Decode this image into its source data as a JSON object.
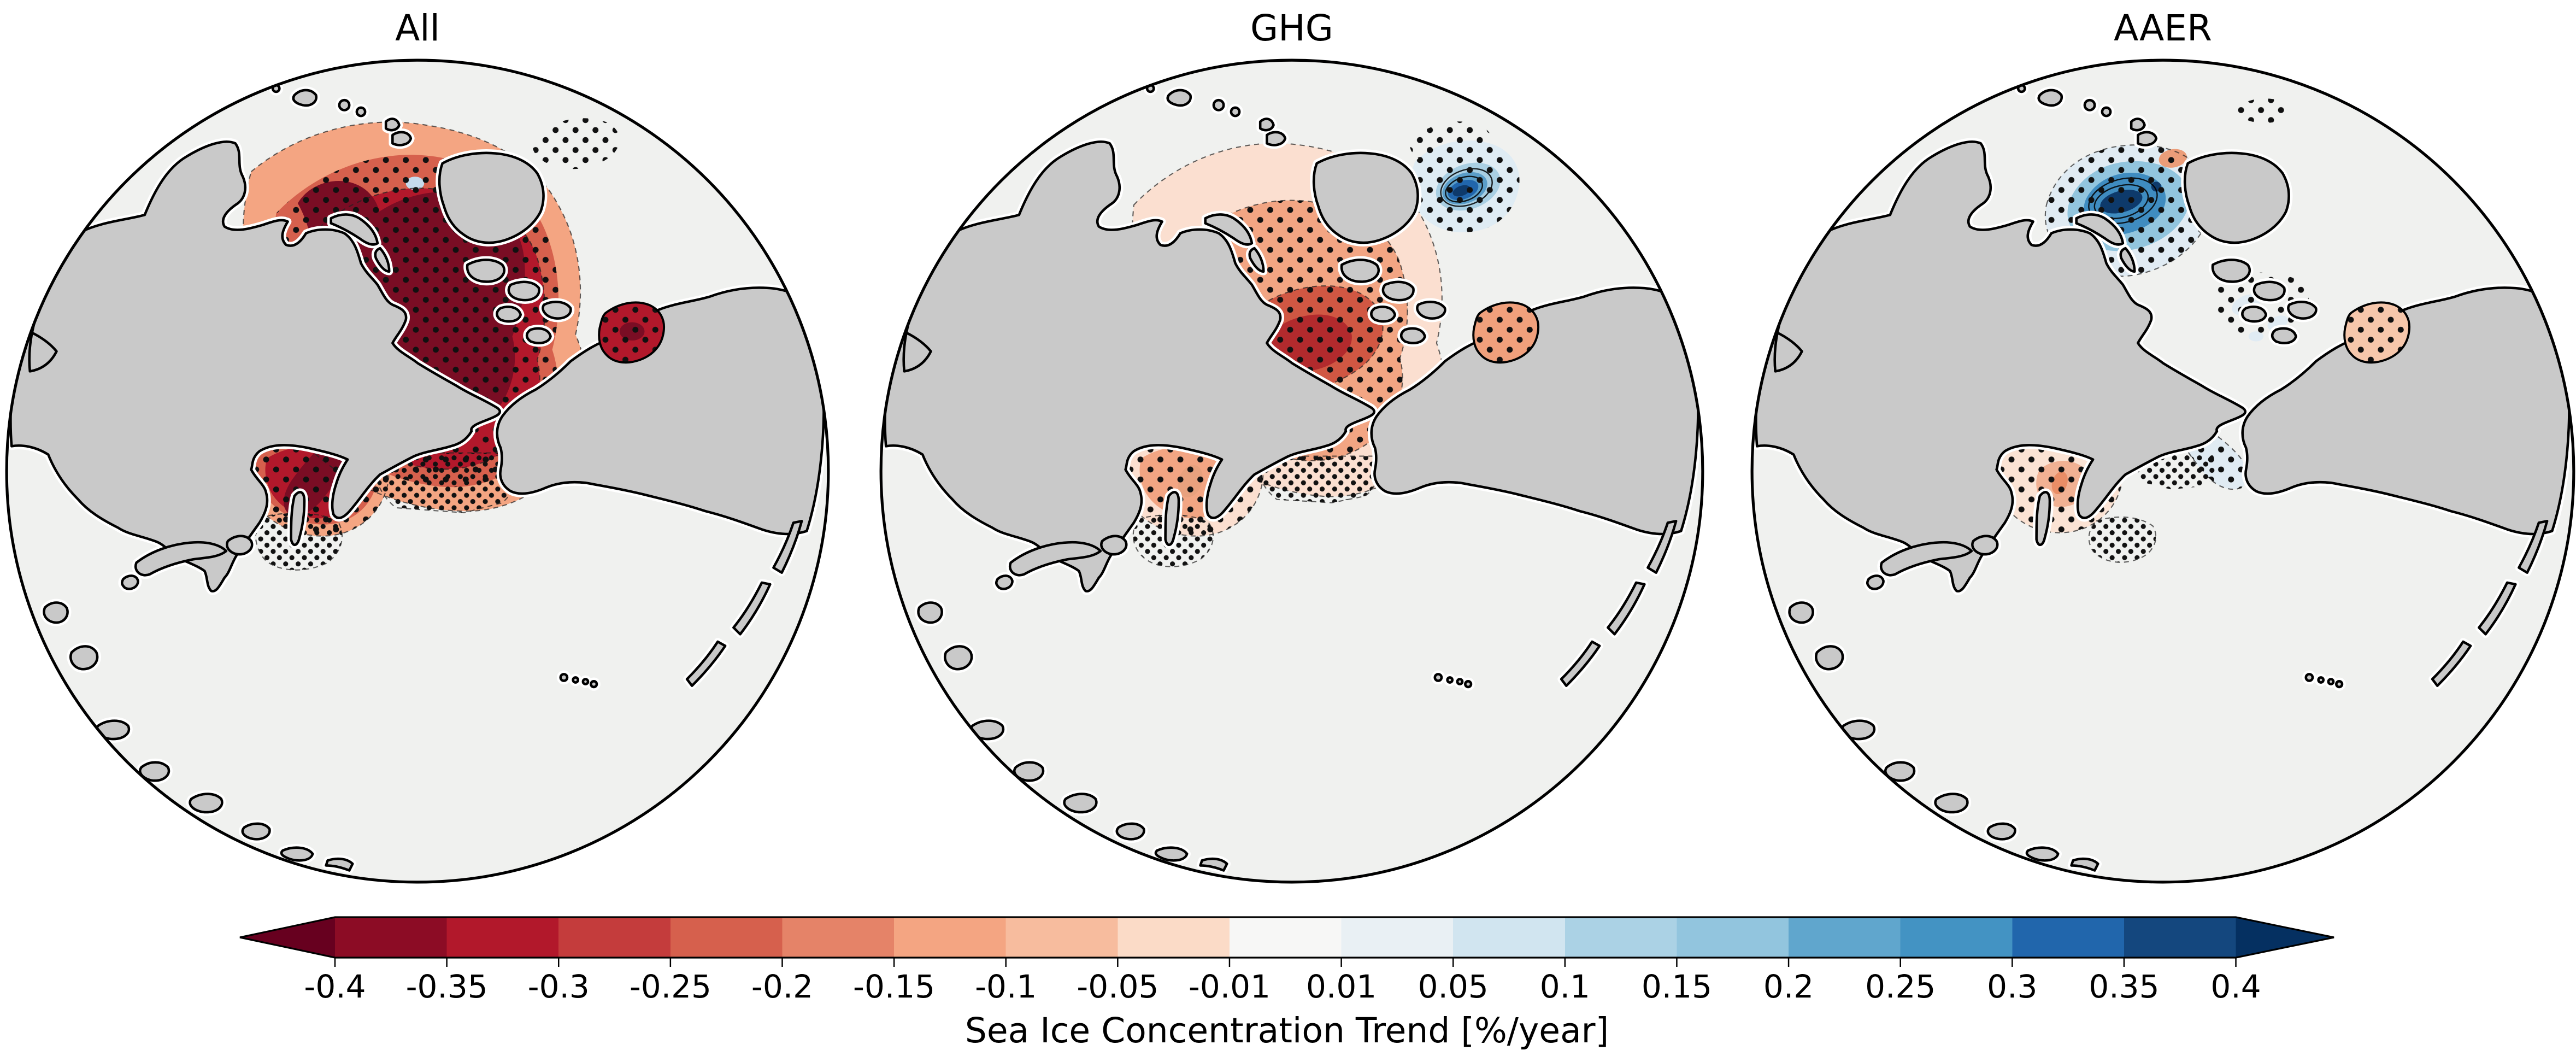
{
  "figure": {
    "panels": [
      {
        "title": "All"
      },
      {
        "title": "GHG"
      },
      {
        "title": "AAER"
      }
    ]
  },
  "colorbar": {
    "label": "Sea Ice Concentration Trend [%/year]",
    "tick_labels": [
      "-0.4",
      "-0.35",
      "-0.3",
      "-0.25",
      "-0.2",
      "-0.15",
      "-0.1",
      "-0.05",
      "-0.01",
      "0.01",
      "0.05",
      "0.1",
      "0.15",
      "0.2",
      "0.25",
      "0.3",
      "0.35",
      "0.4"
    ],
    "colors": [
      "#67001f",
      "#8c0c25",
      "#b2182b",
      "#c43c3c",
      "#d6604d",
      "#e58368",
      "#f4a582",
      "#f7bc9e",
      "#fbdbc7",
      "#f7f7f6",
      "#e9f0f4",
      "#d1e5f0",
      "#abd2e5",
      "#92c5de",
      "#60a6cd",
      "#4393c3",
      "#2166ac",
      "#14477e",
      "#053061"
    ],
    "extend": "both"
  },
  "colors": {
    "land": "#c9c9c9",
    "ocean": "#f0f1ef",
    "halo": "#ffffff",
    "coast": "#000000",
    "red1": "#f4a582",
    "red2": "#d6604d",
    "red3": "#b2182b",
    "red4": "#7a0d24",
    "ghg_pale": "#fbdfd0",
    "ghg_mid": "#f2a583",
    "ghg_core": "#d05743",
    "ghg_core2": "#b22a2d",
    "swirl_pale": "#dfecf4",
    "blue_light": "#a9cfe3",
    "blue_mid2": "#5b9ec9",
    "blue_deep": "#2166ac",
    "blue_navy": "#0e3a6b",
    "aaer_peach": "#fbe3d4",
    "aaer_peach_mid": "#f1b193",
    "aaer_orange": "#e98d66",
    "aaer_salmon": "#eb9d79",
    "aaer_blue_pale": "#e0ebf3",
    "aaer_blue": "#92c5de",
    "aaer_blue_mid": "#3f8cc0",
    "okh_spot": "#e8a17e",
    "bay_ghg": "#f0a07c",
    "bay_aaer": "#f6c7ab",
    "iceblue": "#c5dbed",
    "stipple": "#111111"
  },
  "chart_data": {
    "type": "heatmap",
    "subtype": "filled-contour orthographic polar maps, 3 panels sharing one discrete colorbar",
    "panels": [
      {
        "title": "All",
        "description": "Strong negative sea-ice concentration trends (below -0.4 %/year, darkest red) over the central Arctic Ocean and Barents/Kara seas, with additional strong negative cells in the Sea of Okhotsk and Hudson Bay; black stippling marks significance; small weak-positive (pale blue) spot near Svalbard; dotted-only areas in the Bering Sea and south of the Sea of Okhotsk."
      },
      {
        "title": "GHG",
        "description": "Moderate negative trends (about -0.3 to -0.05 %/year, mid reds) over the Arctic Ocean and marginal seas with stippling; a compact strong positive cell (above +0.4 %/year, dark navy rings) near Hudson Strait/Foxe Basin; weak negative patches in the Sea of Okhotsk, Bering Sea and Hudson Bay."
      },
      {
        "title": "AAER",
        "description": "Weak trends overall; positive (blue) trends up to above +0.4 %/year centered on the Barents Sea with a dark navy core, plus pale positive band along the Bering Strait/Alaska coast and Canadian Archipelago channels; weak negative (pale red) trends in the central Arctic fringe, Sea of Okhotsk and Hudson Bay; stippling over significant areas."
      }
    ],
    "colorbar": {
      "label": "Sea Ice Concentration Trend [%/year]",
      "units": "%/year",
      "levels": [
        -0.4,
        -0.35,
        -0.3,
        -0.25,
        -0.2,
        -0.15,
        -0.1,
        -0.05,
        -0.01,
        0.01,
        0.05,
        0.1,
        0.15,
        0.2,
        0.25,
        0.3,
        0.35,
        0.4
      ],
      "extend": "both",
      "colormap": "RdBu (discrete)"
    }
  }
}
